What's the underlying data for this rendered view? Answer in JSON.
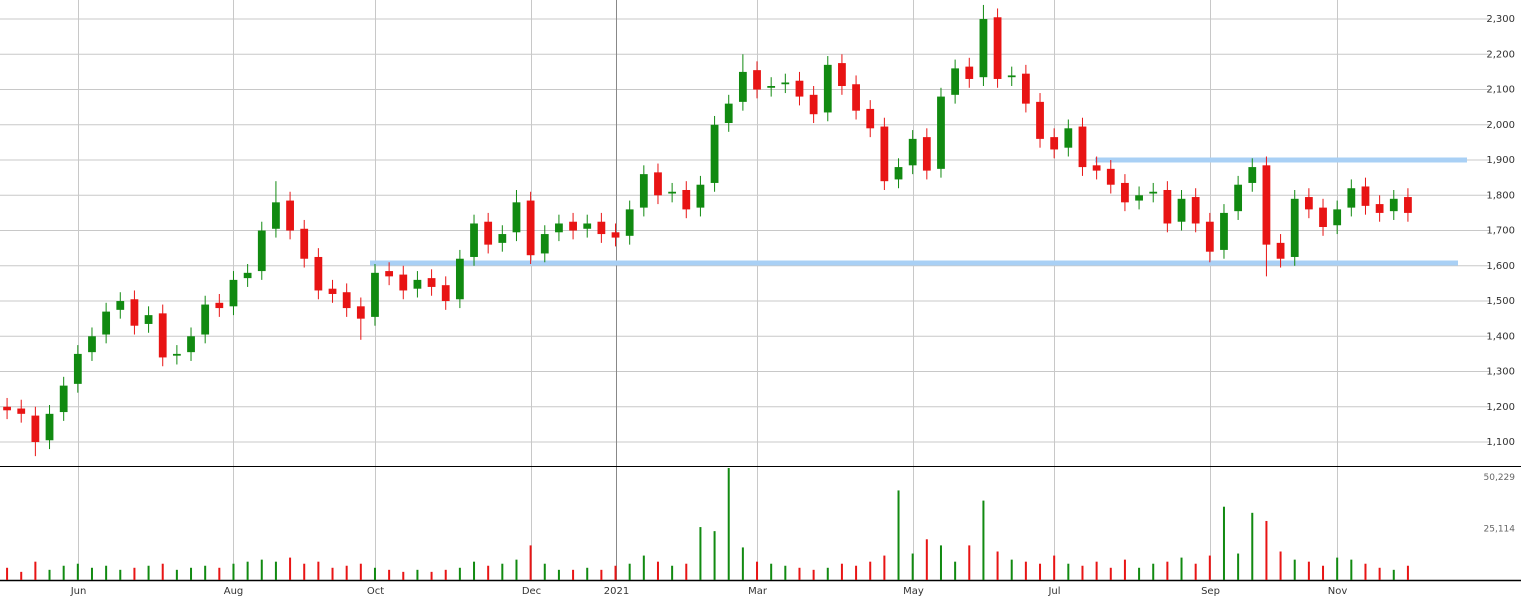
{
  "chart_data": {
    "type": "candlestick",
    "categories": [
      null,
      null,
      null,
      null,
      null,
      "Jun",
      null,
      null,
      null,
      null,
      null,
      null,
      null,
      null,
      null,
      null,
      "Aug",
      null,
      null,
      null,
      null,
      null,
      null,
      null,
      null,
      null,
      "Oct",
      null,
      null,
      null,
      null,
      null,
      null,
      null,
      null,
      null,
      null,
      "Dec",
      null,
      null,
      null,
      null,
      null,
      "2021",
      null,
      null,
      null,
      null,
      null,
      null,
      null,
      null,
      null,
      "Mar",
      null,
      null,
      null,
      null,
      null,
      null,
      null,
      null,
      null,
      null,
      "May",
      null,
      null,
      null,
      null,
      null,
      null,
      null,
      null,
      null,
      "Jul",
      null,
      null,
      null,
      null,
      null,
      null,
      null,
      null,
      null,
      null,
      "Sep",
      null,
      null,
      null,
      null,
      null,
      null,
      null,
      null,
      "Nov",
      null,
      null,
      null,
      null,
      null
    ],
    "open": [
      1200,
      1195,
      1175,
      1105,
      1185,
      1265,
      1355,
      1405,
      1475,
      1505,
      1435,
      1465,
      1345,
      1355,
      1405,
      1495,
      1485,
      1565,
      1585,
      1705,
      1785,
      1705,
      1625,
      1535,
      1525,
      1485,
      1455,
      1585,
      1575,
      1535,
      1565,
      1545,
      1505,
      1625,
      1725,
      1665,
      1695,
      1785,
      1635,
      1695,
      1725,
      1705,
      1725,
      1695,
      1685,
      1765,
      1865,
      1805,
      1815,
      1765,
      1835,
      2005,
      2065,
      2155,
      2105,
      2115,
      2125,
      2085,
      2035,
      2175,
      2115,
      2045,
      1995,
      1845,
      1885,
      1965,
      1875,
      2085,
      2165,
      2135,
      2305,
      2135,
      2145,
      2065,
      1965,
      1935,
      1995,
      1885,
      1875,
      1835,
      1785,
      1805,
      1815,
      1725,
      1795,
      1725,
      1645,
      1755,
      1835,
      1885,
      1665,
      1625,
      1795,
      1765,
      1715,
      1765,
      1825,
      1775,
      1755,
      1795
    ],
    "high": [
      1225,
      1220,
      1200,
      1205,
      1285,
      1375,
      1425,
      1495,
      1525,
      1530,
      1485,
      1490,
      1375,
      1425,
      1515,
      1520,
      1585,
      1605,
      1725,
      1840,
      1810,
      1730,
      1650,
      1560,
      1550,
      1510,
      1605,
      1610,
      1600,
      1585,
      1590,
      1570,
      1645,
      1745,
      1750,
      1715,
      1815,
      1810,
      1715,
      1745,
      1750,
      1745,
      1750,
      1720,
      1785,
      1885,
      1890,
      1835,
      1840,
      1855,
      2025,
      2085,
      2200,
      2180,
      2135,
      2145,
      2150,
      2110,
      2195,
      2200,
      2140,
      2070,
      2020,
      1905,
      1985,
      1990,
      2105,
      2185,
      2190,
      2340,
      2330,
      2165,
      2170,
      2090,
      1990,
      2015,
      2020,
      1910,
      1900,
      1860,
      1825,
      1835,
      1840,
      1815,
      1820,
      1750,
      1775,
      1855,
      1905,
      1910,
      1690,
      1815,
      1820,
      1790,
      1785,
      1845,
      1850,
      1800,
      1815,
      1820
    ],
    "low": [
      1165,
      1155,
      1060,
      1080,
      1160,
      1240,
      1330,
      1380,
      1450,
      1405,
      1410,
      1315,
      1320,
      1330,
      1380,
      1455,
      1460,
      1540,
      1560,
      1680,
      1675,
      1595,
      1505,
      1495,
      1455,
      1390,
      1430,
      1545,
      1505,
      1510,
      1515,
      1475,
      1480,
      1600,
      1635,
      1640,
      1670,
      1605,
      1610,
      1670,
      1675,
      1680,
      1665,
      1655,
      1660,
      1740,
      1775,
      1780,
      1735,
      1740,
      1810,
      1980,
      2040,
      2075,
      2080,
      2090,
      2055,
      2005,
      2010,
      2085,
      2015,
      1965,
      1815,
      1820,
      1860,
      1845,
      1850,
      2060,
      2105,
      2110,
      2105,
      2110,
      2035,
      1935,
      1905,
      1910,
      1855,
      1845,
      1805,
      1755,
      1760,
      1780,
      1695,
      1700,
      1695,
      1610,
      1620,
      1730,
      1810,
      1570,
      1595,
      1600,
      1735,
      1685,
      1690,
      1740,
      1745,
      1725,
      1730,
      1725
    ],
    "close": [
      1190,
      1180,
      1100,
      1180,
      1260,
      1350,
      1400,
      1470,
      1500,
      1430,
      1460,
      1340,
      1350,
      1400,
      1490,
      1480,
      1560,
      1580,
      1700,
      1780,
      1700,
      1620,
      1530,
      1520,
      1480,
      1450,
      1580,
      1570,
      1530,
      1560,
      1540,
      1500,
      1620,
      1720,
      1660,
      1690,
      1780,
      1630,
      1690,
      1720,
      1700,
      1720,
      1690,
      1680,
      1760,
      1860,
      1800,
      1810,
      1760,
      1830,
      2000,
      2060,
      2150,
      2100,
      2110,
      2120,
      2080,
      2030,
      2170,
      2110,
      2040,
      1990,
      1840,
      1880,
      1960,
      1870,
      2080,
      2160,
      2130,
      2300,
      2130,
      2140,
      2060,
      1960,
      1930,
      1990,
      1880,
      1870,
      1830,
      1780,
      1800,
      1810,
      1720,
      1790,
      1720,
      1640,
      1750,
      1830,
      1880,
      1660,
      1620,
      1790,
      1760,
      1710,
      1760,
      1820,
      1770,
      1750,
      1790,
      1750
    ],
    "volume": [
      6000,
      4000,
      9000,
      5000,
      7000,
      8000,
      6000,
      7000,
      5000,
      6000,
      7000,
      8000,
      5000,
      6000,
      7000,
      6000,
      8000,
      9000,
      10000,
      9000,
      11000,
      8000,
      9000,
      6000,
      7000,
      8000,
      6000,
      5000,
      4000,
      5000,
      4000,
      5000,
      6000,
      9000,
      7000,
      8000,
      10000,
      17000,
      8000,
      5000,
      5000,
      6000,
      5000,
      7000,
      8000,
      12000,
      9000,
      7000,
      8000,
      26000,
      24000,
      55000,
      16000,
      9000,
      8000,
      7000,
      6000,
      5000,
      6000,
      8000,
      7000,
      9000,
      12000,
      44000,
      13000,
      20000,
      17000,
      9000,
      17000,
      39000,
      14000,
      10000,
      9000,
      8000,
      12000,
      8000,
      7000,
      9000,
      6000,
      10000,
      6000,
      8000,
      9000,
      11000,
      8000,
      12000,
      36000,
      13000,
      33000,
      29000,
      14000,
      10000,
      9000,
      7000,
      11000,
      10000,
      8000,
      6000,
      5000,
      7000
    ],
    "up_color": "#118a11",
    "down_color": "#e81414",
    "ylim": [
      1032,
      2354
    ],
    "yticks": [
      {
        "value": 1100,
        "label": "1,100"
      },
      {
        "value": 1200,
        "label": "1,200"
      },
      {
        "value": 1300,
        "label": "1,300"
      },
      {
        "value": 1400,
        "label": "1,400"
      },
      {
        "value": 1500,
        "label": "1,500"
      },
      {
        "value": 1600,
        "label": "1,600"
      },
      {
        "value": 1700,
        "label": "1,700"
      },
      {
        "value": 1800,
        "label": "1,800"
      },
      {
        "value": 1900,
        "label": "1,900"
      },
      {
        "value": 2000,
        "label": "2,000"
      },
      {
        "value": 2100,
        "label": "2,100"
      },
      {
        "value": 2200,
        "label": "2,200"
      },
      {
        "value": 2300,
        "label": "2,300"
      }
    ],
    "volume_lim": [
      0,
      56000
    ],
    "volume_ticks": [
      {
        "value": 50229,
        "label": "50,229"
      },
      {
        "value": 25114,
        "label": "25,114"
      }
    ],
    "hlines": [
      {
        "value": 1900,
        "color": "#a9d0f5"
      },
      {
        "value": 1608,
        "color": "#a9d0f5"
      }
    ],
    "grid": true
  }
}
